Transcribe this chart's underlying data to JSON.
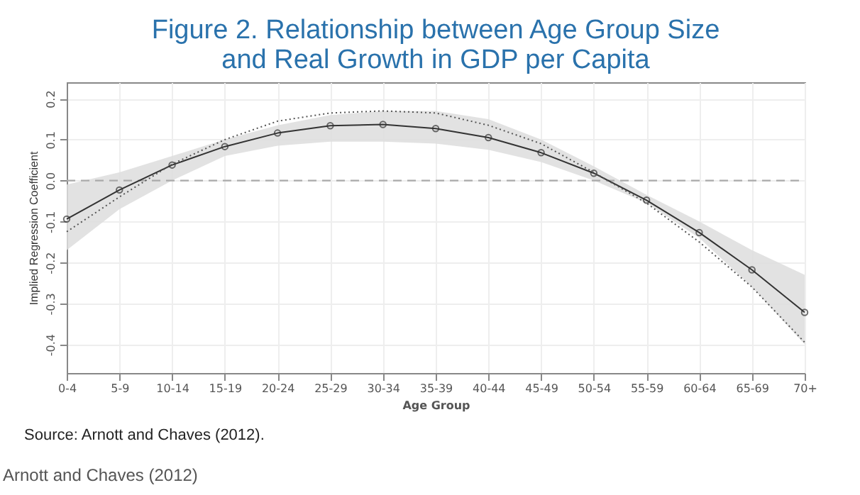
{
  "chart_data": {
    "type": "line",
    "title": "Figure 2. Relationship between Age Group Size\nand Real Growth in GDP per Capita",
    "xlabel": "Age Group",
    "ylabel": "Implied Regression Coefficient",
    "categories": [
      "0-4",
      "5-9",
      "10-14",
      "15-19",
      "20-24",
      "25-29",
      "30-34",
      "35-39",
      "40-44",
      "45-49",
      "50-54",
      "55-59",
      "60-64",
      "65-69",
      "70+"
    ],
    "series": [
      {
        "color": "#333333",
        "marker": "circle",
        "line_style": "solid",
        "values": [
          -0.094,
          -0.023,
          0.038,
          0.083,
          0.116,
          0.134,
          0.137,
          0.127,
          0.105,
          0.068,
          0.018,
          -0.048,
          -0.127,
          -0.218,
          -0.322
        ],
        "lower": [
          -0.17,
          -0.07,
          0.0,
          0.06,
          0.085,
          0.095,
          0.095,
          0.09,
          0.075,
          0.045,
          0.0,
          -0.055,
          -0.14,
          -0.26,
          -0.4
        ],
        "upper": [
          -0.01,
          0.02,
          0.06,
          0.1,
          0.135,
          0.16,
          0.17,
          0.17,
          0.15,
          0.1,
          0.035,
          -0.035,
          -0.1,
          -0.17,
          -0.23
        ]
      },
      {
        "color": "#555555",
        "marker": "none",
        "line_style": "dotted",
        "values": [
          -0.125,
          -0.04,
          0.04,
          0.1,
          0.145,
          0.165,
          0.17,
          0.165,
          0.135,
          0.09,
          0.02,
          -0.055,
          -0.15,
          -0.26,
          -0.395
        ]
      }
    ],
    "ylim": [
      -0.47,
      0.24
    ],
    "yticks": [
      {
        "value": -0.4,
        "label": "-0.4"
      },
      {
        "value": -0.3,
        "label": "-0.3"
      },
      {
        "value": -0.2,
        "label": "-0.2"
      },
      {
        "value": -0.1,
        "label": "-0.1"
      },
      {
        "value": 0,
        "label": "0.0"
      },
      {
        "value": 0.1,
        "label": "0.1"
      },
      {
        "value": 0.2,
        "label": "0.2"
      }
    ],
    "grid": true,
    "ref_lines": [
      {
        "axis": "y",
        "value": 0,
        "color": "#aaaaaa",
        "line_style": "dashed"
      }
    ],
    "annotations": [
      "Source: Arnott and Chaves (2012).",
      "Arnott and Chaves (2012)"
    ]
  }
}
